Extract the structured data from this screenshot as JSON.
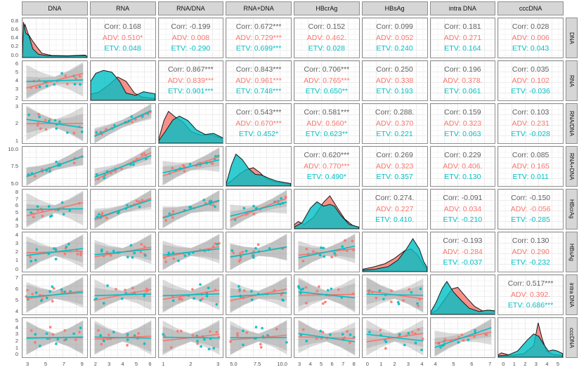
{
  "chart_data": {
    "type": "scatter",
    "subtype": "ggpairs-correlation-matrix",
    "corr_label": "Corr",
    "corr_color": "#5e5e5e",
    "grid": "on",
    "groups": [
      {
        "name": "ADV",
        "color": "#F8766D"
      },
      {
        "name": "ETV",
        "color": "#00BFC4"
      }
    ],
    "band_color": "#999999",
    "variables": [
      {
        "name": "DNA",
        "x_ticks": [
          "3",
          "5",
          "7",
          "9"
        ],
        "y_ticks": [
          "0.8",
          "0.6",
          "0.4",
          "0.2",
          "0.0"
        ]
      },
      {
        "name": "RNA",
        "x_ticks": [
          "2",
          "3",
          "4",
          "5",
          "6"
        ],
        "y_ticks": [
          "6",
          "5",
          "4",
          "3",
          "2"
        ]
      },
      {
        "name": "RNA/DNA",
        "x_ticks": [
          "1",
          "2",
          "3"
        ],
        "y_ticks": [
          "3",
          "2",
          "1"
        ]
      },
      {
        "name": "RNA+DNA",
        "x_ticks": [
          "5.0",
          "7.5",
          "10.0"
        ],
        "y_ticks": [
          "10.0",
          "7.5",
          "5.0"
        ]
      },
      {
        "name": "HBcrAg",
        "x_ticks": [
          "3",
          "4",
          "5",
          "6",
          "7",
          "8"
        ],
        "y_ticks": [
          "8",
          "7",
          "6",
          "5",
          "4",
          "3"
        ]
      },
      {
        "name": "HBsAg",
        "x_ticks": [
          "0",
          "1",
          "2",
          "3",
          "4"
        ],
        "y_ticks": [
          "4",
          "3",
          "2",
          "1",
          "0"
        ]
      },
      {
        "name": "intra DNA",
        "x_ticks": [
          "4",
          "5",
          "6",
          "7"
        ],
        "y_ticks": [
          "7",
          "6",
          "5",
          "4"
        ]
      },
      {
        "name": "cccDNA",
        "x_ticks": [
          "0",
          "1",
          "2",
          "3",
          "4",
          "5"
        ],
        "y_ticks": [
          "5",
          "4",
          "3",
          "2",
          "1",
          "0"
        ]
      }
    ],
    "correlations": [
      {
        "row": "DNA",
        "col": "RNA",
        "corr": "0.168",
        "adv": "0.510*",
        "etv": "0.048"
      },
      {
        "row": "DNA",
        "col": "RNA/DNA",
        "corr": "-0.199",
        "adv": "0.008",
        "etv": "-0.290"
      },
      {
        "row": "DNA",
        "col": "RNA+DNA",
        "corr": "0.672***",
        "adv": "0.729***",
        "etv": "0.699***"
      },
      {
        "row": "DNA",
        "col": "HBcrAg",
        "corr": "0.152",
        "adv": "0.462.",
        "etv": "0.028"
      },
      {
        "row": "DNA",
        "col": "HBsAg",
        "corr": "0.099",
        "adv": "0.052",
        "etv": "0.240"
      },
      {
        "row": "DNA",
        "col": "intra DNA",
        "corr": "0.181",
        "adv": "0.271",
        "etv": "0.164"
      },
      {
        "row": "DNA",
        "col": "cccDNA",
        "corr": "0.028",
        "adv": "0.006",
        "etv": "0.043"
      },
      {
        "row": "RNA",
        "col": "RNA/DNA",
        "corr": "0.867***",
        "adv": "0.839***",
        "etv": "0.901***"
      },
      {
        "row": "RNA",
        "col": "RNA+DNA",
        "corr": "0.843***",
        "adv": "0.961***",
        "etv": "0.748***"
      },
      {
        "row": "RNA",
        "col": "HBcrAg",
        "corr": "0.706***",
        "adv": "0.765***",
        "etv": "0.650**"
      },
      {
        "row": "RNA",
        "col": "HBsAg",
        "corr": "0.250",
        "adv": "0.338",
        "etv": "0.193"
      },
      {
        "row": "RNA",
        "col": "intra DNA",
        "corr": "0.196",
        "adv": "0.378.",
        "etv": "0.061"
      },
      {
        "row": "RNA",
        "col": "cccDNA",
        "corr": "0.035",
        "adv": "0.102",
        "etv": "-0.036"
      },
      {
        "row": "RNA/DNA",
        "col": "RNA+DNA",
        "corr": "0.543***",
        "adv": "0.670***",
        "etv": "0.452*"
      },
      {
        "row": "RNA/DNA",
        "col": "HBcrAg",
        "corr": "0.581***",
        "adv": "0.560*",
        "etv": "0.623**"
      },
      {
        "row": "RNA/DNA",
        "col": "HBsAg",
        "corr": "0.288.",
        "adv": "0.370",
        "etv": "0.221"
      },
      {
        "row": "RNA/DNA",
        "col": "intra DNA",
        "corr": "0.159",
        "adv": "0.323",
        "etv": "0.063"
      },
      {
        "row": "RNA/DNA",
        "col": "cccDNA",
        "corr": "0.103",
        "adv": "0.231",
        "etv": "-0.028"
      },
      {
        "row": "RNA+DNA",
        "col": "HBcrAg",
        "corr": "0.620***",
        "adv": "0.770***",
        "etv": "0.490*"
      },
      {
        "row": "RNA+DNA",
        "col": "HBsAg",
        "corr": "0.269",
        "adv": "0.323",
        "etv": "0.357"
      },
      {
        "row": "RNA+DNA",
        "col": "intra DNA",
        "corr": "0.229",
        "adv": "0.406.",
        "etv": "0.130"
      },
      {
        "row": "RNA+DNA",
        "col": "cccDNA",
        "corr": "0.085",
        "adv": "0.165",
        "etv": "0.011"
      },
      {
        "row": "HBcrAg",
        "col": "HBsAg",
        "corr": "0.274.",
        "adv": "0.227",
        "etv": "0.410."
      },
      {
        "row": "HBcrAg",
        "col": "intra DNA",
        "corr": "-0.091",
        "adv": "0.034",
        "etv": "-0.210"
      },
      {
        "row": "HBcrAg",
        "col": "cccDNA",
        "corr": "-0.150",
        "adv": "-0.056",
        "etv": "-0.285"
      },
      {
        "row": "HBsAg",
        "col": "intra DNA",
        "corr": "-0.193",
        "adv": "-0.284",
        "etv": "-0.037"
      },
      {
        "row": "HBsAg",
        "col": "cccDNA",
        "corr": "0.130",
        "adv": "0.290",
        "etv": "-0.232"
      },
      {
        "row": "intra DNA",
        "col": "cccDNA",
        "corr": "0.517***",
        "adv": "0.392.",
        "etv": "0.686***"
      }
    ],
    "densities": {
      "DNA": {
        "adv": [
          [
            0,
            0.05
          ],
          [
            0.01,
            0.7
          ],
          [
            0.04,
            0.88
          ],
          [
            0.09,
            0.62
          ],
          [
            0.15,
            0.45
          ],
          [
            0.22,
            0.28
          ],
          [
            0.3,
            0.1
          ],
          [
            0.45,
            0.04
          ],
          [
            0.7,
            0.03
          ],
          [
            0.97,
            0.05
          ],
          [
            1,
            0.02
          ]
        ],
        "etv": [
          [
            0,
            0.05
          ],
          [
            0.015,
            0.95
          ],
          [
            0.05,
            0.65
          ],
          [
            0.1,
            0.58
          ],
          [
            0.16,
            0.22
          ],
          [
            0.25,
            0.07
          ],
          [
            0.4,
            0.03
          ],
          [
            0.7,
            0.025
          ],
          [
            0.97,
            0.04
          ],
          [
            1,
            0.02
          ]
        ]
      },
      "RNA": {
        "adv": [
          [
            0,
            0.15
          ],
          [
            0.12,
            0.2
          ],
          [
            0.28,
            0.4
          ],
          [
            0.42,
            0.62
          ],
          [
            0.55,
            0.5
          ],
          [
            0.68,
            0.18
          ],
          [
            0.8,
            0.07
          ],
          [
            1,
            0.03
          ]
        ],
        "etv": [
          [
            0,
            0.5
          ],
          [
            0.08,
            0.72
          ],
          [
            0.2,
            0.8
          ],
          [
            0.33,
            0.75
          ],
          [
            0.45,
            0.5
          ],
          [
            0.55,
            0.18
          ],
          [
            0.7,
            0.12
          ],
          [
            0.82,
            0.22
          ],
          [
            1,
            0.16
          ]
        ]
      },
      "RNA/DNA": {
        "adv": [
          [
            0,
            0.1
          ],
          [
            0.08,
            0.6
          ],
          [
            0.15,
            0.85
          ],
          [
            0.25,
            0.7
          ],
          [
            0.38,
            0.55
          ],
          [
            0.5,
            0.3
          ],
          [
            0.65,
            0.2
          ],
          [
            0.8,
            0.22
          ],
          [
            0.92,
            0.15
          ],
          [
            1,
            0.1
          ]
        ],
        "etv": [
          [
            0,
            0.05
          ],
          [
            0.1,
            0.3
          ],
          [
            0.22,
            0.62
          ],
          [
            0.32,
            0.72
          ],
          [
            0.45,
            0.6
          ],
          [
            0.58,
            0.35
          ],
          [
            0.72,
            0.22
          ],
          [
            0.85,
            0.25
          ],
          [
            1,
            0.12
          ]
        ]
      },
      "RNA+DNA": {
        "adv": [
          [
            0,
            0.02
          ],
          [
            0.1,
            0.15
          ],
          [
            0.2,
            0.3
          ],
          [
            0.3,
            0.42
          ],
          [
            0.42,
            0.48
          ],
          [
            0.52,
            0.35
          ],
          [
            0.62,
            0.18
          ],
          [
            0.75,
            0.1
          ],
          [
            0.9,
            0.05
          ],
          [
            1,
            0.03
          ]
        ],
        "etv": [
          [
            0,
            0.05
          ],
          [
            0.08,
            0.55
          ],
          [
            0.15,
            0.85
          ],
          [
            0.25,
            0.7
          ],
          [
            0.35,
            0.45
          ],
          [
            0.45,
            0.3
          ],
          [
            0.55,
            0.28
          ],
          [
            0.65,
            0.2
          ],
          [
            0.78,
            0.12
          ],
          [
            0.9,
            0.08
          ],
          [
            1,
            0.05
          ]
        ]
      },
      "HBcrAg": {
        "adv": [
          [
            0,
            0.1
          ],
          [
            0.06,
            0.18
          ],
          [
            0.15,
            0.1
          ],
          [
            0.3,
            0.3
          ],
          [
            0.45,
            0.7
          ],
          [
            0.55,
            0.88
          ],
          [
            0.65,
            0.6
          ],
          [
            0.78,
            0.25
          ],
          [
            0.9,
            0.08
          ],
          [
            1,
            0.02
          ]
        ],
        "etv": [
          [
            0,
            0.03
          ],
          [
            0.12,
            0.15
          ],
          [
            0.25,
            0.55
          ],
          [
            0.35,
            0.72
          ],
          [
            0.45,
            0.6
          ],
          [
            0.55,
            0.65
          ],
          [
            0.62,
            0.6
          ],
          [
            0.72,
            0.35
          ],
          [
            0.85,
            0.1
          ],
          [
            1,
            0.03
          ]
        ]
      },
      "HBsAg": {
        "adv": [
          [
            0,
            0.05
          ],
          [
            0.15,
            0.1
          ],
          [
            0.35,
            0.2
          ],
          [
            0.5,
            0.35
          ],
          [
            0.65,
            0.55
          ],
          [
            0.75,
            0.6
          ],
          [
            0.85,
            0.45
          ],
          [
            0.95,
            0.15
          ],
          [
            1,
            0.05
          ]
        ],
        "etv": [
          [
            0,
            0.02
          ],
          [
            0.2,
            0.05
          ],
          [
            0.4,
            0.12
          ],
          [
            0.55,
            0.3
          ],
          [
            0.68,
            0.6
          ],
          [
            0.78,
            0.88
          ],
          [
            0.88,
            0.6
          ],
          [
            0.95,
            0.25
          ],
          [
            1,
            0.1
          ]
        ]
      },
      "intra DNA": {
        "adv": [
          [
            0,
            0.02
          ],
          [
            0.1,
            0.1
          ],
          [
            0.22,
            0.4
          ],
          [
            0.33,
            0.68
          ],
          [
            0.42,
            0.72
          ],
          [
            0.55,
            0.45
          ],
          [
            0.68,
            0.2
          ],
          [
            0.8,
            0.08
          ],
          [
            0.92,
            0.1
          ],
          [
            1,
            0.05
          ]
        ],
        "etv": [
          [
            0,
            0.05
          ],
          [
            0.08,
            0.3
          ],
          [
            0.18,
            0.7
          ],
          [
            0.25,
            0.88
          ],
          [
            0.35,
            0.6
          ],
          [
            0.48,
            0.35
          ],
          [
            0.6,
            0.15
          ],
          [
            0.75,
            0.06
          ],
          [
            0.88,
            0.1
          ],
          [
            1,
            0.08
          ]
        ]
      },
      "cccDNA": {
        "adv": [
          [
            0,
            0.05
          ],
          [
            0.05,
            0.1
          ],
          [
            0.2,
            0.03
          ],
          [
            0.4,
            0.08
          ],
          [
            0.55,
            0.3
          ],
          [
            0.62,
            0.92
          ],
          [
            0.68,
            0.5
          ],
          [
            0.75,
            0.15
          ],
          [
            0.85,
            0.06
          ],
          [
            1,
            0.03
          ]
        ],
        "etv": [
          [
            0,
            0.02
          ],
          [
            0.15,
            0.04
          ],
          [
            0.3,
            0.15
          ],
          [
            0.45,
            0.45
          ],
          [
            0.55,
            0.62
          ],
          [
            0.63,
            0.55
          ],
          [
            0.7,
            0.35
          ],
          [
            0.78,
            0.15
          ],
          [
            0.85,
            0.18
          ],
          [
            0.92,
            0.15
          ],
          [
            1,
            0.08
          ]
        ]
      }
    }
  }
}
